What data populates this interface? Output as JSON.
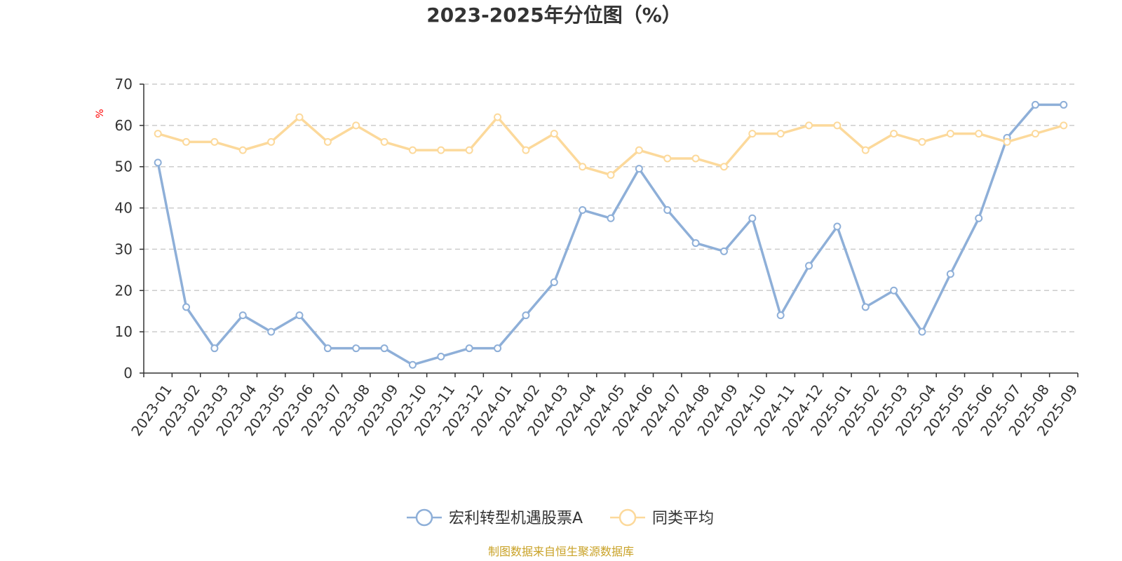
{
  "chart_data": {
    "type": "line",
    "title": "2023-2025年分位图（%）",
    "ylabel": "%",
    "ylabel_color": "#ff0000",
    "ylim": [
      0,
      70
    ],
    "yticks": [
      0,
      10,
      20,
      30,
      40,
      50,
      60,
      70
    ],
    "grid": true,
    "legend_position": "bottom-center",
    "categories": [
      "2023-01",
      "2023-02",
      "2023-03",
      "2023-04",
      "2023-05",
      "2023-06",
      "2023-07",
      "2023-08",
      "2023-09",
      "2023-10",
      "2023-11",
      "2023-12",
      "2024-01",
      "2024-02",
      "2024-03",
      "2024-04",
      "2024-05",
      "2024-06",
      "2024-07",
      "2024-08",
      "2024-09",
      "2024-10",
      "2024-11",
      "2024-12",
      "2025-01",
      "2025-02",
      "2025-03",
      "2025-04",
      "2025-05",
      "2025-06",
      "2025-07",
      "2025-08",
      "2025-09"
    ],
    "series": [
      {
        "name": "宏利转型机遇股票A",
        "color": "#8eafd8",
        "values": [
          51,
          16,
          6,
          14,
          10,
          14,
          6,
          6,
          6,
          2,
          4,
          6,
          6,
          14,
          22,
          39.5,
          37.5,
          49.5,
          39.5,
          31.5,
          29.5,
          37.5,
          14,
          26,
          35.5,
          16,
          20,
          10,
          24,
          37.5,
          57,
          65,
          65
        ]
      },
      {
        "name": "同类平均",
        "color": "#fcd99b",
        "values": [
          58,
          56,
          56,
          54,
          56,
          62,
          56,
          60,
          56,
          54,
          54,
          54,
          62,
          54,
          58,
          50,
          48,
          54,
          52,
          52,
          50,
          58,
          58,
          60,
          60,
          54,
          58,
          56,
          58,
          58,
          56,
          58,
          60
        ]
      }
    ]
  },
  "source": {
    "text": "制图数据来自恒生聚源数据库",
    "color": "#c9a227"
  }
}
